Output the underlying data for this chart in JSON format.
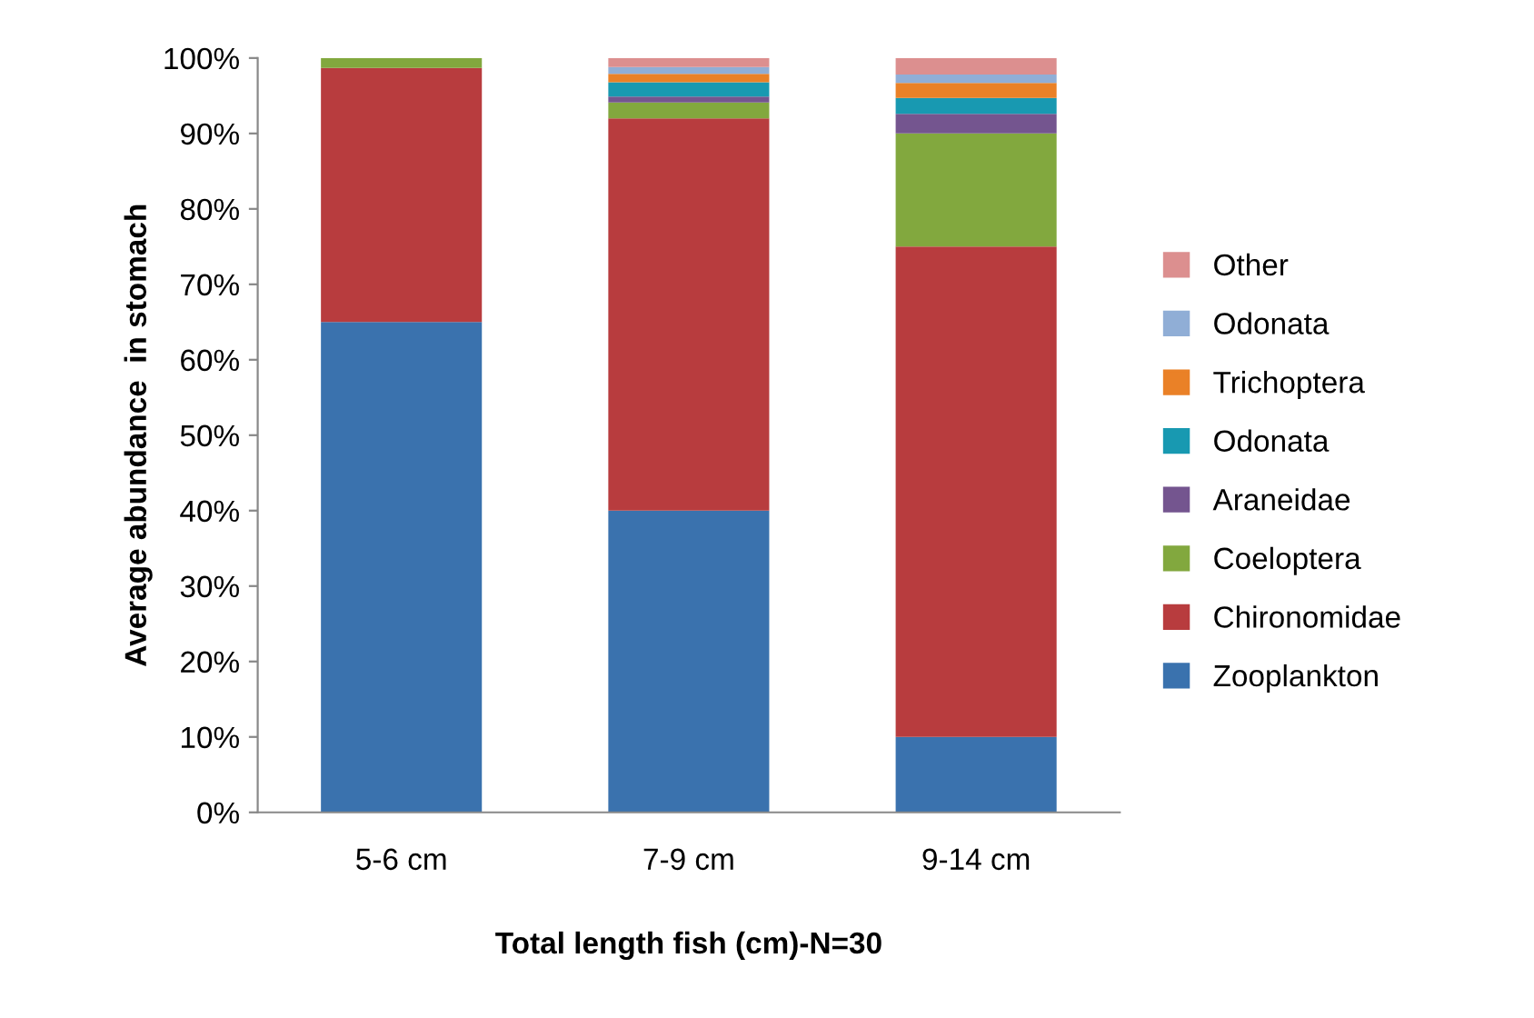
{
  "chart_data": {
    "type": "bar",
    "stacked": true,
    "xlabel": "Total length fish (cm)-N=30",
    "ylabel": "Average abundance  in stomach",
    "categories": [
      "5-6 cm",
      "7-9 cm",
      "9-14 cm"
    ],
    "series": [
      {
        "name": "Zooplankton",
        "color": "#3a72ae",
        "values": [
          65,
          40,
          10
        ]
      },
      {
        "name": "Chironomidae",
        "color": "#b83c3e",
        "values": [
          33.7,
          52,
          65
        ]
      },
      {
        "name": "Coeloptera",
        "color": "#82a83e",
        "values": [
          1.3,
          2.1,
          15
        ]
      },
      {
        "name": "Araneidae",
        "color": "#74558f",
        "values": [
          0,
          0.8,
          2.6
        ]
      },
      {
        "name": "Odonata",
        "color": "#1899b1",
        "values": [
          0,
          1.9,
          2.1
        ]
      },
      {
        "name": "Trichoptera",
        "color": "#ea8127",
        "values": [
          0,
          1.1,
          2.0
        ]
      },
      {
        "name": "Odonata",
        "color": "#90aed6",
        "values": [
          0,
          0.9,
          1.1
        ]
      },
      {
        "name": "Other",
        "color": "#dc8f8f",
        "values": [
          0,
          1.2,
          2.2
        ]
      }
    ],
    "ylim": [
      0,
      100
    ],
    "yticks": [
      {
        "value": 0,
        "label": "0%"
      },
      {
        "value": 10,
        "label": "10%"
      },
      {
        "value": 20,
        "label": "20%"
      },
      {
        "value": 30,
        "label": "30%"
      },
      {
        "value": 40,
        "label": "40%"
      },
      {
        "value": 50,
        "label": "50%"
      },
      {
        "value": 60,
        "label": "60%"
      },
      {
        "value": 70,
        "label": "70%"
      },
      {
        "value": 80,
        "label": "80%"
      },
      {
        "value": 90,
        "label": "90%"
      },
      {
        "value": 100,
        "label": "100%"
      }
    ],
    "grid": false,
    "legend": "right"
  }
}
